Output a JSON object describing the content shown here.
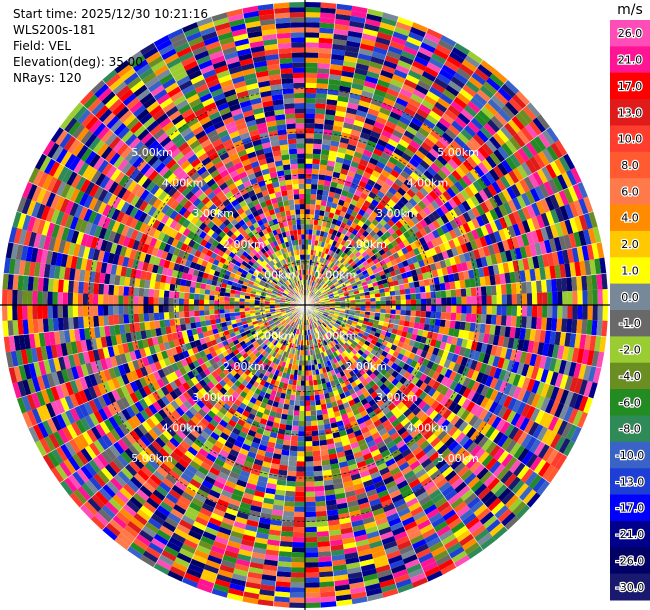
{
  "info": {
    "start_time": "Start time: 2025/12/30 10:21:16",
    "site": "WLS200s-181",
    "field": "Field: VEL",
    "elevation": "Elevation(deg): 35.00",
    "nrays": "NRays: 120"
  },
  "chart_data": {
    "type": "heatmap",
    "projection": "polar",
    "field": "VEL",
    "nrays": 120,
    "range_rings": [
      {
        "label": "1.00km",
        "km": 1
      },
      {
        "label": "2.00km",
        "km": 2
      },
      {
        "label": "3.00km",
        "km": 3
      },
      {
        "label": "4.00km",
        "km": 4
      },
      {
        "label": "5.00km",
        "km": 5
      }
    ],
    "max_range_km": 7,
    "colorbar": {
      "unit": "m/s",
      "ticks": [
        "26.0",
        "21.0",
        "17.0",
        "13.0",
        "10.0",
        "8.0",
        "6.0",
        "4.0",
        "2.0",
        "1.0",
        "0.0",
        "-1.0",
        "-2.0",
        "-4.0",
        "-6.0",
        "-8.0",
        "-10.0",
        "-13.0",
        "-17.0",
        "-21.0",
        "-26.0",
        "-30.0"
      ],
      "colors": [
        "#ff4db8",
        "#ff1493",
        "#ff0000",
        "#e01b1b",
        "#ff3d2e",
        "#ff5a30",
        "#ff7a4a",
        "#ff8c00",
        "#ffc800",
        "#ffff00",
        "#778899",
        "#696969",
        "#9acd32",
        "#6b8e23",
        "#228b22",
        "#2e8b57",
        "#3a63c8",
        "#1e3fd6",
        "#0000ff",
        "#00008b",
        "#000066",
        "#191970"
      ]
    }
  }
}
